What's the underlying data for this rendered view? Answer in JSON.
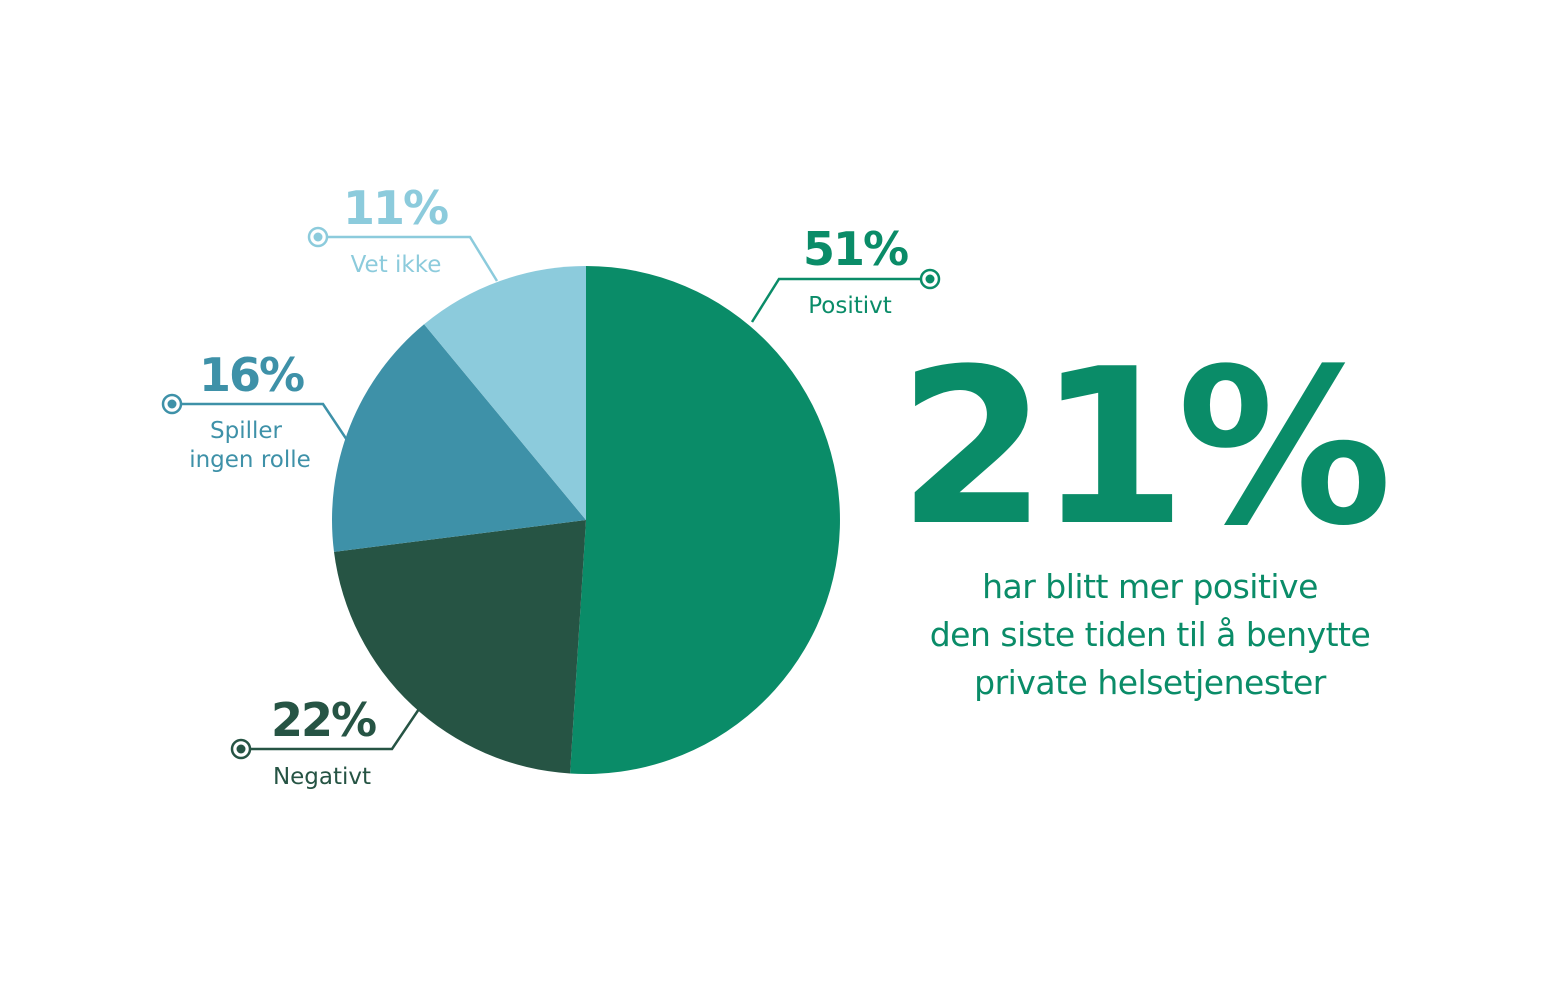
{
  "chart_data": {
    "type": "pie",
    "slices": [
      {
        "label": "Positivt",
        "value": 51,
        "display": "51%",
        "color": "#0a8c68",
        "label_color": "#0a8c68"
      },
      {
        "label": "Negativt",
        "value": 22,
        "display": "22%",
        "color": "#265444",
        "label_color": "#265444"
      },
      {
        "label_lines": [
          "Spiller",
          "ingen rolle"
        ],
        "label": "Spiller ingen rolle",
        "value": 16,
        "display": "16%",
        "color": "#3e91a8",
        "label_color": "#3e91a8"
      },
      {
        "label": "Vet ikke",
        "value": 11,
        "display": "11%",
        "color": "#8ccbdc",
        "label_color": "#8ccbdc"
      }
    ],
    "start": "12 o'clock",
    "direction": "clockwise"
  },
  "headline": {
    "number": "21%",
    "lines": [
      "har blitt mer positive",
      "den siste tiden til å benytte",
      "private helsetjenester"
    ],
    "color": "#0a8c68"
  }
}
